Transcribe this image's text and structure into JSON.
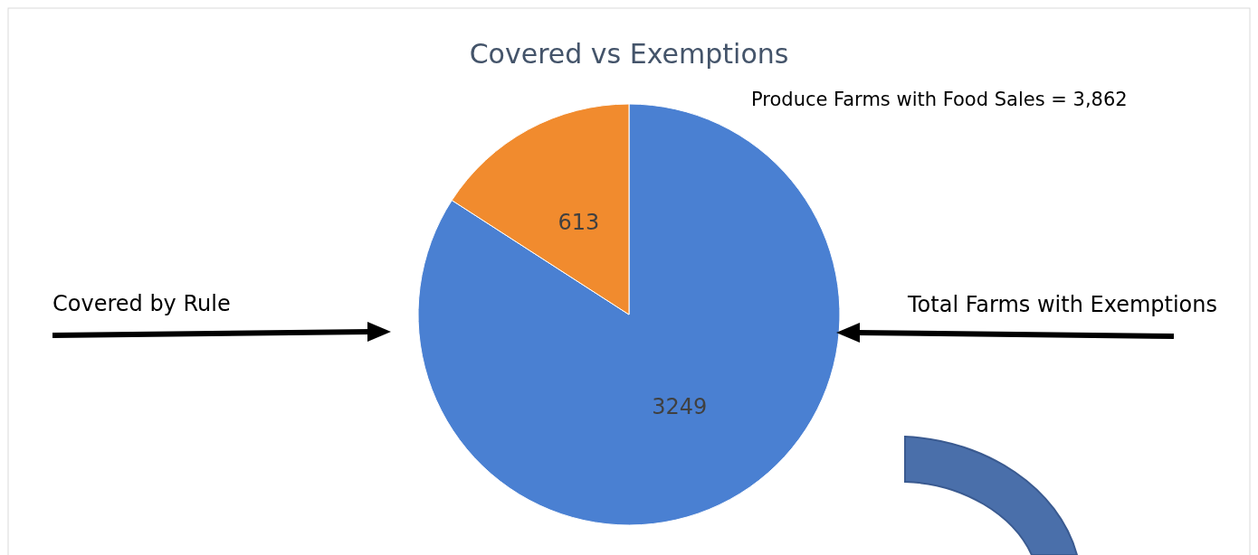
{
  "chart_data": {
    "type": "pie",
    "title": "Covered vs Exemptions",
    "categories": [
      null,
      null
    ],
    "values": [
      3249,
      613
    ],
    "colors": [
      "#4a80d2",
      "#f18b2e"
    ],
    "data_labels": true,
    "annotations": [
      "Produce Farms with Food Sales = 3,862",
      "Covered by Rule",
      "Total Farms with Exemptions"
    ]
  }
}
